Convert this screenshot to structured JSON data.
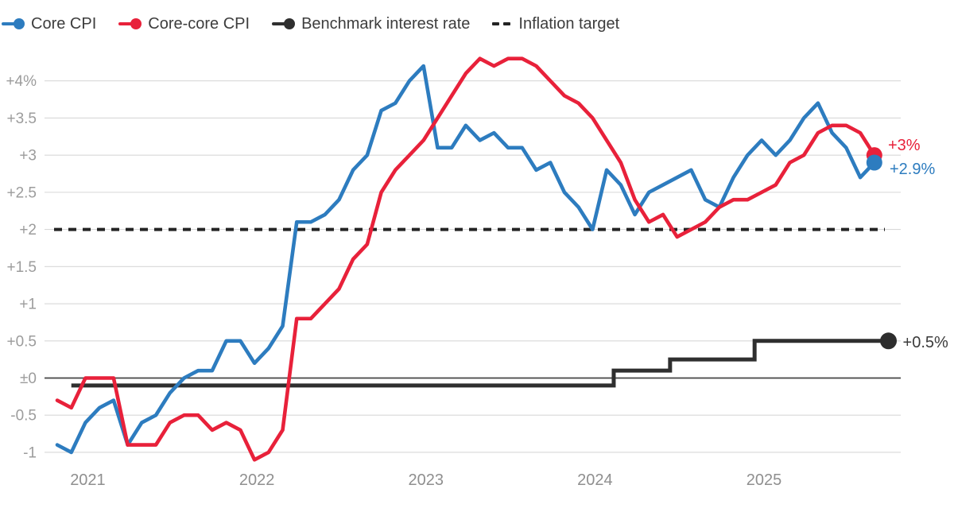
{
  "page": {
    "background": "#ffffff"
  },
  "chart_data": {
    "type": "line",
    "title": "",
    "x_start": "2020-11",
    "x_end": "2025-09",
    "frequency": "monthly",
    "x_tick_labels": [
      "2021",
      "2022",
      "2023",
      "2024",
      "2025"
    ],
    "ylim": [
      -1,
      4.35
    ],
    "grid": true,
    "legend_position": "top-left",
    "y_ticks": [
      {
        "value": 4,
        "label": "+4%"
      },
      {
        "value": 3.5,
        "label": "+3.5"
      },
      {
        "value": 3,
        "label": "+3"
      },
      {
        "value": 2.5,
        "label": "+2.5"
      },
      {
        "value": 2,
        "label": "+2"
      },
      {
        "value": 1.5,
        "label": "+1.5"
      },
      {
        "value": 1,
        "label": "+1"
      },
      {
        "value": 0.5,
        "label": "+0.5"
      },
      {
        "value": 0,
        "label": "±0"
      },
      {
        "value": -0.5,
        "label": "-0.5"
      },
      {
        "value": -1,
        "label": "-1"
      }
    ],
    "series": [
      {
        "name": "Core CPI",
        "color": "#2d7cbf",
        "unit": "%",
        "values": [
          -0.9,
          -1.0,
          -0.6,
          -0.4,
          -0.3,
          -0.9,
          -0.6,
          -0.5,
          -0.2,
          0.0,
          0.1,
          0.1,
          0.5,
          0.5,
          0.2,
          0.4,
          0.7,
          2.1,
          2.1,
          2.2,
          2.4,
          2.8,
          3.0,
          3.6,
          3.7,
          4.0,
          4.2,
          3.1,
          3.1,
          3.4,
          3.2,
          3.3,
          3.1,
          3.1,
          2.8,
          2.9,
          2.5,
          2.3,
          2.0,
          2.8,
          2.6,
          2.2,
          2.5,
          2.6,
          2.7,
          2.8,
          2.4,
          2.3,
          2.7,
          3.0,
          3.2,
          3.0,
          3.2,
          3.5,
          3.7,
          3.3,
          3.1,
          2.7,
          2.9
        ]
      },
      {
        "name": "Core-core CPI",
        "color": "#e8213a",
        "unit": "%",
        "values": [
          -0.3,
          -0.4,
          0.0,
          0.0,
          0.0,
          -0.9,
          -0.9,
          -0.9,
          -0.6,
          -0.5,
          -0.5,
          -0.7,
          -0.6,
          -0.7,
          -1.1,
          -1.0,
          -0.7,
          0.8,
          0.8,
          1.0,
          1.2,
          1.6,
          1.8,
          2.5,
          2.8,
          3.0,
          3.2,
          3.5,
          3.8,
          4.1,
          4.3,
          4.2,
          4.3,
          4.3,
          4.2,
          4.0,
          3.8,
          3.7,
          3.5,
          3.2,
          2.9,
          2.4,
          2.1,
          2.2,
          1.9,
          2.0,
          2.1,
          2.3,
          2.4,
          2.4,
          2.5,
          2.6,
          2.9,
          3.0,
          3.3,
          3.4,
          3.4,
          3.3,
          3.0
        ]
      }
    ],
    "step_series": {
      "name": "Benchmark interest rate",
      "color": "#2f2f2f",
      "unit": "%",
      "changes": [
        {
          "date": "2020-12",
          "rate": -0.1
        },
        {
          "date": "2024-03",
          "rate": 0.1
        },
        {
          "date": "2024-07",
          "rate": 0.25
        },
        {
          "date": "2025-01",
          "rate": 0.5
        }
      ]
    },
    "reference_line": {
      "name": "Inflation target",
      "value": 2,
      "style": "dashed",
      "color": "#242424"
    },
    "end_labels": [
      {
        "series": "Core-core CPI",
        "text": "+3%",
        "color": "#e8213a"
      },
      {
        "series": "Core CPI",
        "text": "+2.9%",
        "color": "#2d7cbf"
      },
      {
        "series": "Benchmark interest rate",
        "text": "+0.5%",
        "color": "#3a3a3a"
      }
    ],
    "legend": [
      {
        "label": "Core CPI",
        "swatch": "line-dot",
        "color": "#2d7cbf"
      },
      {
        "label": "Core-core CPI",
        "swatch": "line-dot",
        "color": "#e8213a"
      },
      {
        "label": "Benchmark interest rate",
        "swatch": "line-dot",
        "color": "#2f2f2f"
      },
      {
        "label": "Inflation target",
        "swatch": "dashes",
        "color": "#242424"
      }
    ],
    "grid_color": "#d8d8d8",
    "zero_line_color": "#454545",
    "axis_text_color": "#9c9c9c",
    "year_text_color": "#8f8f8f"
  }
}
